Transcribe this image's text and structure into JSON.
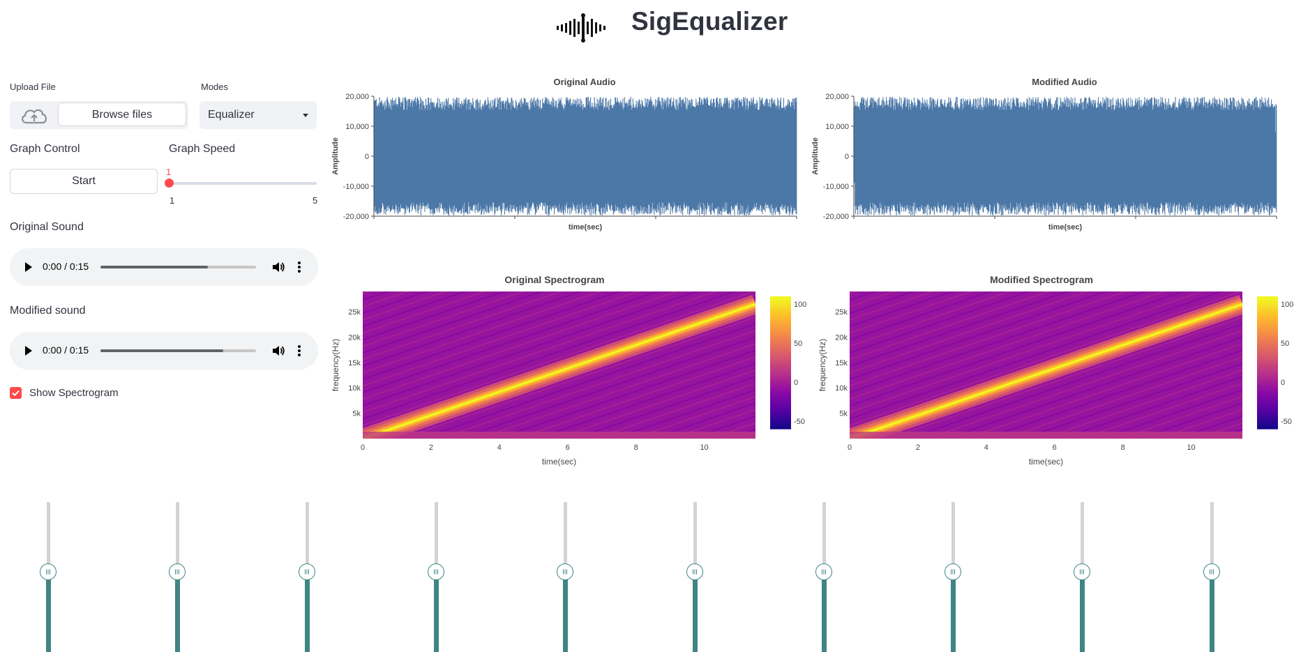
{
  "header": {
    "title": "SigEqualizer",
    "logo_icon": "sound-wave-icon"
  },
  "sidebar": {
    "upload_label": "Upload File",
    "browse_label": "Browse files",
    "modes_label": "Modes",
    "modes_value": "Equalizer",
    "graph_control_label": "Graph Control",
    "start_label": "Start",
    "graph_speed_label": "Graph Speed",
    "speed": {
      "value": "1",
      "min": "1",
      "max": "5",
      "fraction": 0
    },
    "original_sound_label": "Original Sound",
    "original_audio": {
      "time": "0:00 / 0:15",
      "buffered_fraction": 0.69
    },
    "modified_sound_label": "Modified sound",
    "modified_audio": {
      "time": "0:00 / 0:15",
      "buffered_fraction": 0.79
    },
    "show_spectrogram_label": "Show Spectrogram",
    "show_spectrogram_checked": true
  },
  "chart_data": [
    {
      "type": "area",
      "title": "Original Audio",
      "xlabel": "time(sec)",
      "ylabel": "Amplitude",
      "ylim": [
        -20000,
        20000
      ],
      "yticks": [
        "20,000",
        "10,000",
        "0",
        "-10,000",
        "-20,000"
      ],
      "color": "#4c78a8",
      "series_summary": "dense signal filling approximately -19000 to 19000"
    },
    {
      "type": "area",
      "title": "Modified Audio",
      "xlabel": "time(sec)",
      "ylabel": "Amplitude",
      "ylim": [
        -20000,
        20000
      ],
      "yticks": [
        "20,000",
        "10,000",
        "0",
        "-10,000",
        "-20,000"
      ],
      "color": "#4c78a8"
    },
    {
      "type": "heatmap",
      "title": "Original Spectrogram",
      "xlabel": "time(sec)",
      "ylabel": "frequency(Hz)",
      "xticks": [
        "0",
        "2",
        "4",
        "6",
        "8",
        "10"
      ],
      "yticks": [
        "25k",
        "20k",
        "15k",
        "10k",
        "5k"
      ],
      "xlim": [
        0,
        11.5
      ],
      "ylim": [
        0,
        29000
      ],
      "colorbar_ticks": [
        "100",
        "50",
        "0",
        "-50"
      ],
      "colorbar_range": [
        -60,
        110
      ],
      "colorscale": "plasma",
      "chirp": {
        "start": [
          0,
          0
        ],
        "end": [
          11.5,
          26500
        ]
      }
    },
    {
      "type": "heatmap",
      "title": "Modified Spectrogram",
      "xlabel": "time(sec)",
      "ylabel": "frequency(Hz)",
      "xticks": [
        "0",
        "2",
        "4",
        "6",
        "8",
        "10"
      ],
      "yticks": [
        "25k",
        "20k",
        "15k",
        "10k",
        "5k"
      ],
      "xlim": [
        0,
        11.5
      ],
      "ylim": [
        0,
        29000
      ],
      "colorbar_ticks": [
        "100",
        "50",
        "0",
        "-50"
      ],
      "colorbar_range": [
        -60,
        110
      ],
      "colorscale": "plasma",
      "chirp": {
        "start": [
          0,
          0
        ],
        "end": [
          11.5,
          26500
        ]
      }
    }
  ],
  "equalizer": {
    "slider_count": 10,
    "level_fraction": 0.54
  },
  "colors": {
    "accent": "#ff4b4b",
    "slider_fill": "#3f8583",
    "waveform": "#4c78a8"
  }
}
